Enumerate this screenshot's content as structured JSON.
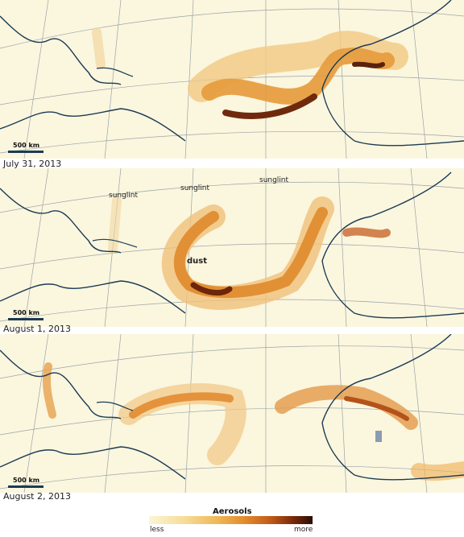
{
  "panels": [
    {
      "date": "July 31, 2013",
      "scale": "500 km",
      "annotations": []
    },
    {
      "date": "August 1, 2013",
      "scale": "500 km",
      "annotations": [
        {
          "id": "sunglint-1",
          "text": "sunglint"
        },
        {
          "id": "sunglint-2",
          "text": "sunglint"
        },
        {
          "id": "sunglint-3",
          "text": "sunglint"
        },
        {
          "id": "dust",
          "text": "dust"
        }
      ]
    },
    {
      "date": "August 2, 2013",
      "scale": "500 km",
      "annotations": []
    }
  ],
  "legend": {
    "title": "Aerosols",
    "less": "less",
    "more": "more",
    "colors": [
      "#fcf5d5",
      "#f6dc95",
      "#efb757",
      "#e38d2d",
      "#c25b17",
      "#7a2a0c",
      "#2a0d04"
    ]
  },
  "colors": {
    "background": "#fbf6de",
    "coastline": "#1b3b54",
    "graticule": "#9aa4a8"
  }
}
